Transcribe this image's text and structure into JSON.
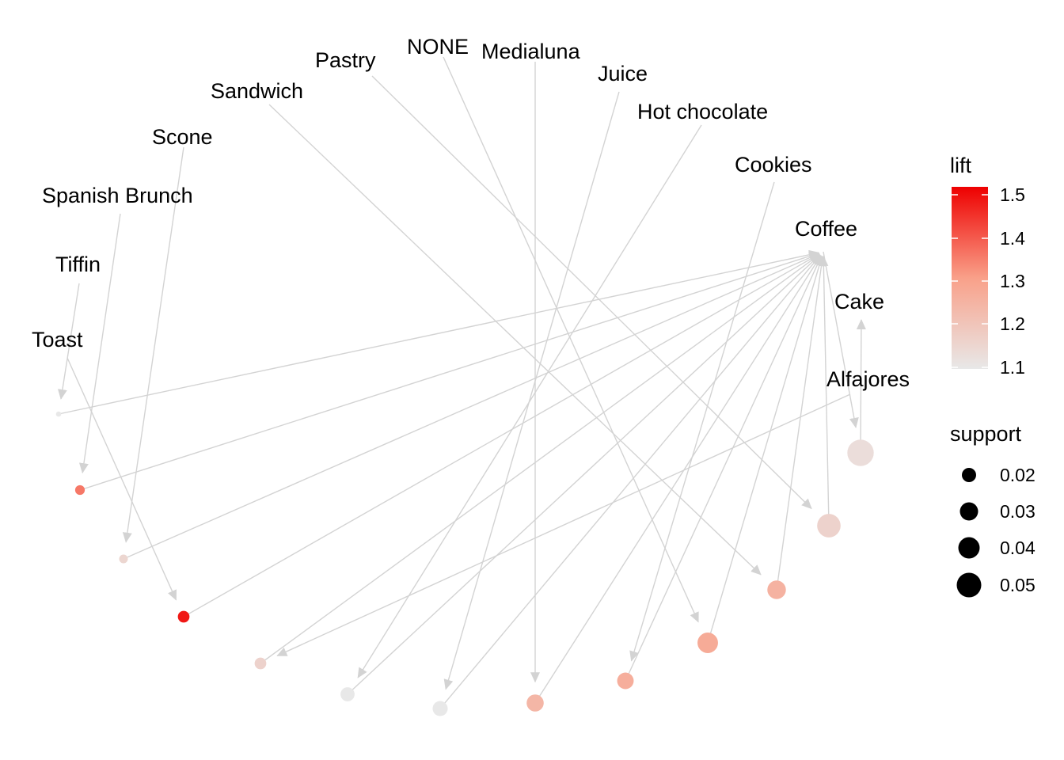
{
  "graph": {
    "items": [
      {
        "id": "toast",
        "label": "Toast"
      },
      {
        "id": "tiffin",
        "label": "Tiffin"
      },
      {
        "id": "spanish-brunch",
        "label": "Spanish Brunch"
      },
      {
        "id": "scone",
        "label": "Scone"
      },
      {
        "id": "sandwich",
        "label": "Sandwich"
      },
      {
        "id": "pastry",
        "label": "Pastry"
      },
      {
        "id": "none",
        "label": "NONE"
      },
      {
        "id": "medialuna",
        "label": "Medialuna"
      },
      {
        "id": "juice",
        "label": "Juice"
      },
      {
        "id": "hot-chocolate",
        "label": "Hot chocolate"
      },
      {
        "id": "cookies",
        "label": "Cookies"
      },
      {
        "id": "coffee",
        "label": "Coffee"
      },
      {
        "id": "cake",
        "label": "Cake"
      },
      {
        "id": "alfajores",
        "label": "Alfajores"
      }
    ],
    "rules": [
      {
        "lhs": "toast",
        "rhs": "coffee",
        "lift": 1.47,
        "support": 0.024
      },
      {
        "lhs": "tiffin",
        "rhs": "coffee",
        "lift": 1.1,
        "support": 0.011
      },
      {
        "lhs": "spanish-brunch",
        "rhs": "coffee",
        "lift": 1.35,
        "support": 0.02
      },
      {
        "lhs": "scone",
        "rhs": "coffee",
        "lift": 1.15,
        "support": 0.018
      },
      {
        "lhs": "sandwich",
        "rhs": "coffee",
        "lift": 1.25,
        "support": 0.038
      },
      {
        "lhs": "pastry",
        "rhs": "coffee",
        "lift": 1.16,
        "support": 0.048
      },
      {
        "lhs": "none",
        "rhs": "coffee",
        "lift": 1.27,
        "support": 0.042
      },
      {
        "lhs": "medialuna",
        "rhs": "coffee",
        "lift": 1.24,
        "support": 0.035
      },
      {
        "lhs": "juice",
        "rhs": "coffee",
        "lift": 1.1,
        "support": 0.031
      },
      {
        "lhs": "hot-chocolate",
        "rhs": "coffee",
        "lift": 1.1,
        "support": 0.029
      },
      {
        "lhs": "cookies",
        "rhs": "coffee",
        "lift": 1.26,
        "support": 0.034
      },
      {
        "lhs": "coffee",
        "rhs": "cake",
        "lift": 1.13,
        "support": 0.054
      },
      {
        "lhs": "alfajores",
        "rhs": "coffee",
        "lift": 1.16,
        "support": 0.024
      }
    ]
  },
  "legend": {
    "lift": {
      "title": "lift",
      "ticks": [
        "1.5",
        "1.4",
        "1.3",
        "1.2",
        "1.1"
      ],
      "low_color": "#e8e8e8",
      "high_color": "#ee0000"
    },
    "support": {
      "title": "support",
      "ticks": [
        "0.02",
        "0.03",
        "0.04",
        "0.05"
      ]
    }
  }
}
